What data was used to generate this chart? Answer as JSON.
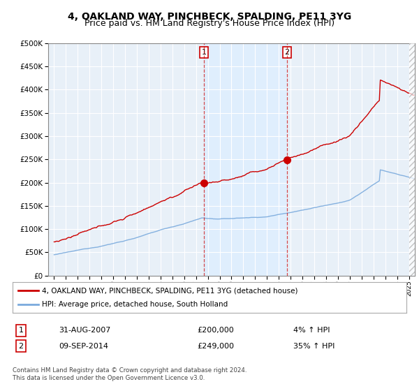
{
  "title": "4, OAKLAND WAY, PINCHBECK, SPALDING, PE11 3YG",
  "subtitle": "Price paid vs. HM Land Registry's House Price Index (HPI)",
  "legend_line1": "4, OAKLAND WAY, PINCHBECK, SPALDING, PE11 3YG (detached house)",
  "legend_line2": "HPI: Average price, detached house, South Holland",
  "annotation1_label": "1",
  "annotation1_date": "31-AUG-2007",
  "annotation1_price": "£200,000",
  "annotation1_hpi": "4% ↑ HPI",
  "annotation2_label": "2",
  "annotation2_date": "09-SEP-2014",
  "annotation2_price": "£249,000",
  "annotation2_hpi": "35% ↑ HPI",
  "footer": "Contains HM Land Registry data © Crown copyright and database right 2024.\nThis data is licensed under the Open Government Licence v3.0.",
  "sale1_year": 2007.667,
  "sale1_price": 200000,
  "sale2_year": 2014.69,
  "sale2_price": 249000,
  "red_color": "#cc0000",
  "blue_color": "#7aaadd",
  "shade_color": "#ddeeff",
  "vline_color": "#cc0000",
  "plot_bg": "#e8f0f8",
  "fig_bg": "#ffffff",
  "ylim": [
    0,
    500000
  ],
  "xlim_start": 1994.5,
  "xlim_end": 2025.5,
  "ytick_interval": 50000,
  "title_fontsize": 10,
  "subtitle_fontsize": 9
}
